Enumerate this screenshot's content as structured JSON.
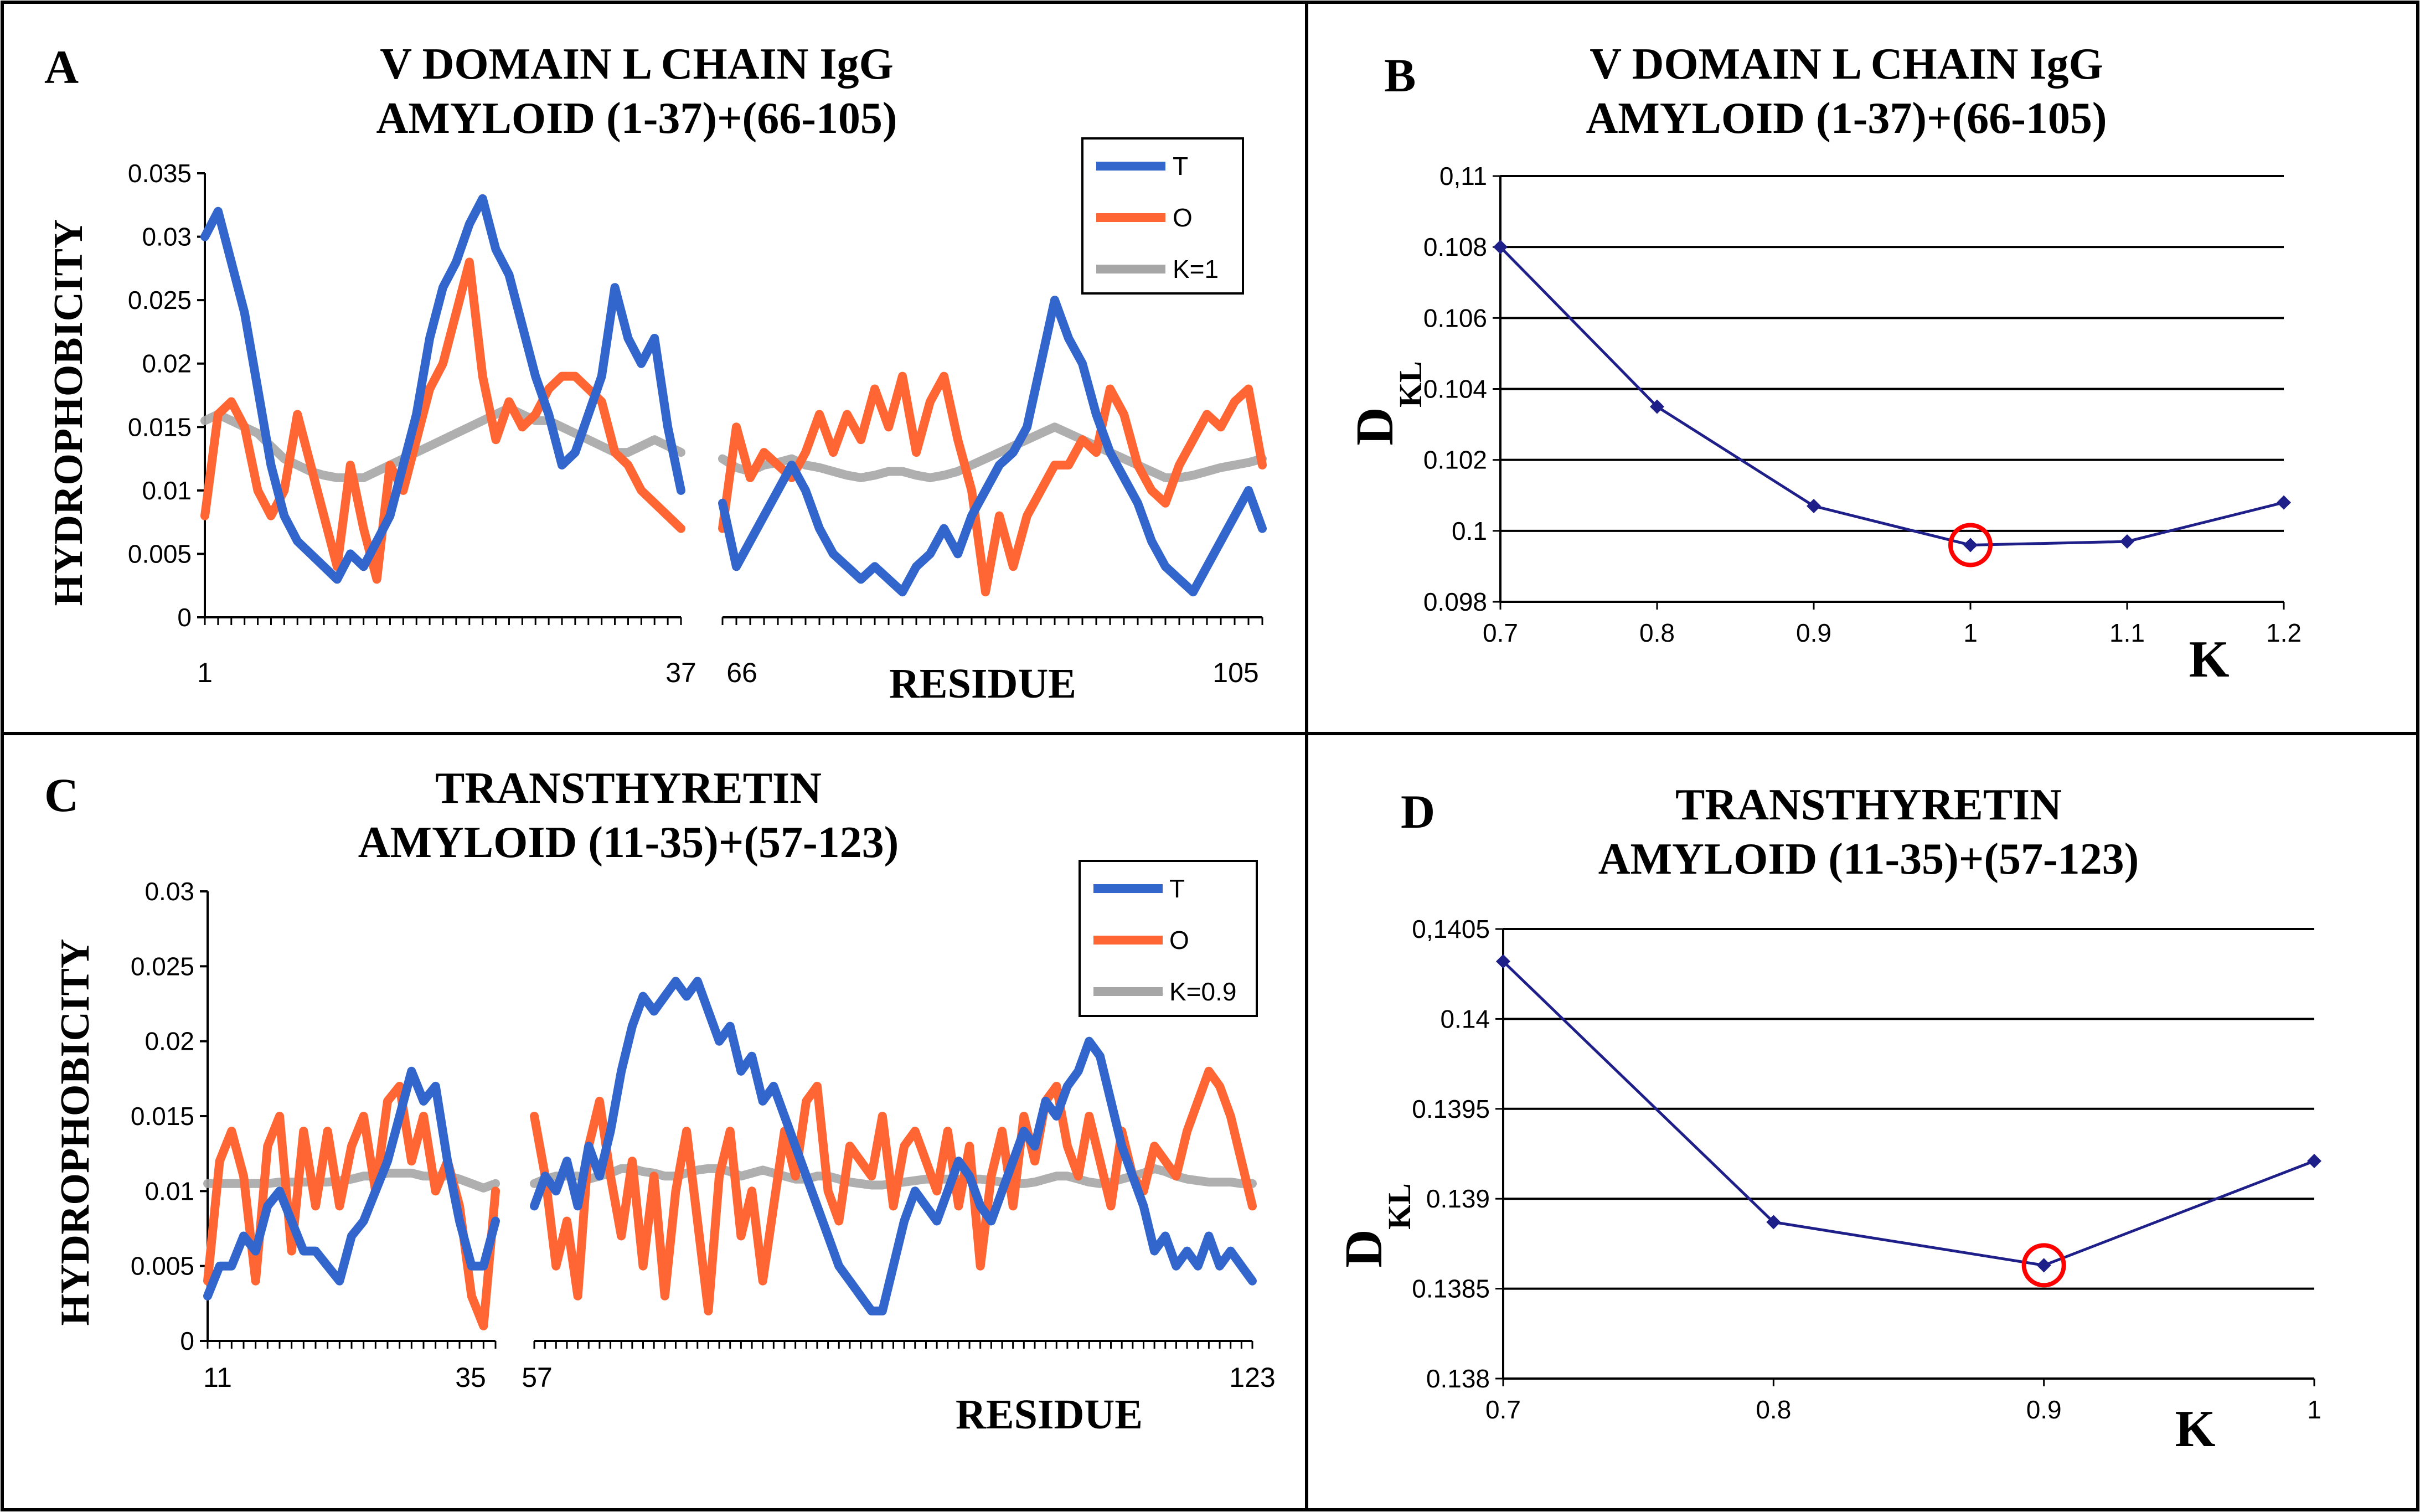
{
  "panels": {
    "A": {
      "letter": "A",
      "title_line1": "V DOMAIN L CHAIN IgG",
      "title_line2": "AMYLOID (1-37)+(66-105)",
      "ylabel": "HYDROPHOBICITY",
      "xlabel": "RESIDUE",
      "seg1_start": "1",
      "seg1_end": "37",
      "seg2_start": "66",
      "seg2_end": "105",
      "legend": [
        {
          "label": "T",
          "color": "#3366cc"
        },
        {
          "label": "O",
          "color": "#ff6633"
        },
        {
          "label": "K=1",
          "color": "#a6a6a6"
        }
      ]
    },
    "B": {
      "letter": "B",
      "title_line1": "V DOMAIN L CHAIN IgG",
      "title_line2": "AMYLOID (1-37)+(66-105)",
      "ylabel_main": "D",
      "ylabel_sub": "KL",
      "xlabel": "K"
    },
    "C": {
      "letter": "C",
      "title_line1": "TRANSTHYRETIN",
      "title_line2": "AMYLOID (11-35)+(57-123)",
      "ylabel": "HYDROPHOBICITY",
      "xlabel": "RESIDUE",
      "seg1_start": "11",
      "seg1_end": "35",
      "seg2_start": "57",
      "seg2_end": "123",
      "legend": [
        {
          "label": "T",
          "color": "#3366cc"
        },
        {
          "label": "O",
          "color": "#ff6633"
        },
        {
          "label": "K=0.9",
          "color": "#a6a6a6"
        }
      ]
    },
    "D": {
      "letter": "D",
      "title_line1": "TRANSTHYRETIN",
      "title_line2": "AMYLOID (11-35)+(57-123)",
      "ylabel_main": "D",
      "ylabel_sub": "KL",
      "xlabel": "K"
    }
  },
  "chart_data": [
    {
      "id": "A",
      "type": "line",
      "title": "V DOMAIN L CHAIN IgG AMYLOID (1-37)+(66-105)",
      "xlabel": "RESIDUE",
      "ylabel": "HYDROPHOBICITY",
      "ylim": [
        0,
        0.035
      ],
      "yticks": [
        "0",
        "0.005",
        "0.01",
        "0.015",
        "0.02",
        "0.025",
        "0.03",
        "0.035"
      ],
      "segments": [
        [
          1,
          37
        ],
        [
          66,
          105
        ]
      ],
      "series": [
        {
          "name": "T",
          "color": "#3366cc",
          "seg1": [
            0.03,
            0.032,
            0.028,
            0.024,
            0.018,
            0.012,
            0.008,
            0.006,
            0.005,
            0.004,
            0.003,
            0.005,
            0.004,
            0.006,
            0.008,
            0.012,
            0.016,
            0.022,
            0.026,
            0.028,
            0.031,
            0.033,
            0.029,
            0.027,
            0.023,
            0.019,
            0.016,
            0.012,
            0.013,
            0.016,
            0.019,
            0.026,
            0.022,
            0.02,
            0.022,
            0.015,
            0.01
          ],
          "seg2": [
            0.009,
            0.004,
            0.006,
            0.008,
            0.01,
            0.012,
            0.01,
            0.007,
            0.005,
            0.004,
            0.003,
            0.004,
            0.003,
            0.002,
            0.004,
            0.005,
            0.007,
            0.005,
            0.008,
            0.01,
            0.012,
            0.013,
            0.015,
            0.02,
            0.025,
            0.022,
            0.02,
            0.016,
            0.013,
            0.011,
            0.009,
            0.006,
            0.004,
            0.003,
            0.002,
            0.004,
            0.006,
            0.008,
            0.01,
            0.007
          ]
        },
        {
          "name": "O",
          "color": "#ff6633",
          "seg1": [
            0.008,
            0.016,
            0.017,
            0.015,
            0.01,
            0.008,
            0.01,
            0.016,
            0.012,
            0.008,
            0.004,
            0.012,
            0.007,
            0.003,
            0.012,
            0.01,
            0.014,
            0.018,
            0.02,
            0.024,
            0.028,
            0.019,
            0.014,
            0.017,
            0.015,
            0.016,
            0.018,
            0.019,
            0.019,
            0.018,
            0.017,
            0.013,
            0.012,
            0.01,
            0.009,
            0.008,
            0.007
          ],
          "seg2": [
            0.007,
            0.015,
            0.011,
            0.013,
            0.012,
            0.011,
            0.013,
            0.016,
            0.013,
            0.016,
            0.014,
            0.018,
            0.015,
            0.019,
            0.013,
            0.017,
            0.019,
            0.014,
            0.01,
            0.002,
            0.008,
            0.004,
            0.008,
            0.01,
            0.012,
            0.012,
            0.014,
            0.013,
            0.018,
            0.016,
            0.012,
            0.01,
            0.009,
            0.012,
            0.014,
            0.016,
            0.015,
            0.017,
            0.018,
            0.012
          ]
        },
        {
          "name": "K=1",
          "color": "#a6a6a6",
          "seg1": [
            0.0155,
            0.016,
            0.0155,
            0.015,
            0.0145,
            0.0135,
            0.0125,
            0.012,
            0.0115,
            0.0112,
            0.011,
            0.011,
            0.011,
            0.0115,
            0.012,
            0.0125,
            0.013,
            0.0135,
            0.014,
            0.0145,
            0.015,
            0.0155,
            0.016,
            0.0165,
            0.016,
            0.0155,
            0.0155,
            0.015,
            0.0145,
            0.014,
            0.0135,
            0.013,
            0.013,
            0.0135,
            0.014,
            0.0135,
            0.013
          ],
          "seg2": [
            0.0125,
            0.0118,
            0.0115,
            0.012,
            0.0122,
            0.0125,
            0.012,
            0.0118,
            0.0115,
            0.0112,
            0.011,
            0.0112,
            0.0115,
            0.0115,
            0.0112,
            0.011,
            0.0112,
            0.0115,
            0.012,
            0.0125,
            0.013,
            0.0135,
            0.014,
            0.0145,
            0.015,
            0.0145,
            0.014,
            0.0135,
            0.013,
            0.0125,
            0.012,
            0.0115,
            0.011,
            0.011,
            0.0112,
            0.0115,
            0.0118,
            0.012,
            0.0122,
            0.0125
          ]
        }
      ]
    },
    {
      "id": "B",
      "type": "line",
      "title": "V DOMAIN L CHAIN IgG AMYLOID (1-37)+(66-105)",
      "xlabel": "K",
      "ylabel": "DKL",
      "x": [
        0.7,
        0.8,
        0.9,
        1.0,
        1.1,
        1.2
      ],
      "xticks": [
        "0.7",
        "0.8",
        "0.9",
        "1",
        "1.1",
        "1.2"
      ],
      "values": [
        0.108,
        0.1035,
        0.1007,
        0.0996,
        0.0997,
        0.1008
      ],
      "ylim": [
        0.098,
        0.11
      ],
      "yticks": [
        "0.098",
        "0.1",
        "0.102",
        "0.104",
        "0.106",
        "0.108",
        "0,11"
      ],
      "highlight_x": 1.0,
      "line_color": "#1f1f8a",
      "highlight_color": "#ff0000"
    },
    {
      "id": "C",
      "type": "line",
      "title": "TRANSTHYRETIN AMYLOID (11-35)+(57-123)",
      "xlabel": "RESIDUE",
      "ylabel": "HYDROPHOBICITY",
      "ylim": [
        0,
        0.03
      ],
      "yticks": [
        "0",
        "0.005",
        "0.01",
        "0.015",
        "0.02",
        "0.025",
        "0.03"
      ],
      "segments": [
        [
          11,
          35
        ],
        [
          57,
          123
        ]
      ],
      "series": [
        {
          "name": "T",
          "color": "#3366cc",
          "seg1": [
            0.003,
            0.005,
            0.005,
            0.007,
            0.006,
            0.009,
            0.01,
            0.008,
            0.006,
            0.006,
            0.005,
            0.004,
            0.007,
            0.008,
            0.01,
            0.012,
            0.015,
            0.018,
            0.016,
            0.017,
            0.012,
            0.008,
            0.005,
            0.005,
            0.008
          ],
          "seg2": [
            0.009,
            0.011,
            0.01,
            0.012,
            0.009,
            0.013,
            0.011,
            0.014,
            0.018,
            0.021,
            0.023,
            0.022,
            0.023,
            0.024,
            0.023,
            0.024,
            0.022,
            0.02,
            0.021,
            0.018,
            0.019,
            0.016,
            0.017,
            0.015,
            0.013,
            0.011,
            0.009,
            0.007,
            0.005,
            0.004,
            0.003,
            0.002,
            0.002,
            0.005,
            0.008,
            0.01,
            0.009,
            0.008,
            0.01,
            0.012,
            0.011,
            0.009,
            0.008,
            0.01,
            0.012,
            0.014,
            0.013,
            0.016,
            0.015,
            0.017,
            0.018,
            0.02,
            0.019,
            0.016,
            0.013,
            0.011,
            0.009,
            0.006,
            0.007,
            0.005,
            0.006,
            0.005,
            0.007,
            0.005,
            0.006,
            0.005,
            0.004
          ]
        },
        {
          "name": "O",
          "color": "#ff6633",
          "seg1": [
            0.004,
            0.012,
            0.014,
            0.011,
            0.004,
            0.013,
            0.015,
            0.006,
            0.014,
            0.009,
            0.014,
            0.009,
            0.013,
            0.015,
            0.01,
            0.016,
            0.017,
            0.012,
            0.015,
            0.01,
            0.012,
            0.009,
            0.003,
            0.001,
            0.01
          ],
          "seg2": [
            0.015,
            0.011,
            0.005,
            0.008,
            0.003,
            0.013,
            0.016,
            0.011,
            0.007,
            0.012,
            0.005,
            0.011,
            0.003,
            0.01,
            0.014,
            0.008,
            0.002,
            0.011,
            0.014,
            0.007,
            0.01,
            0.004,
            0.009,
            0.014,
            0.011,
            0.016,
            0.017,
            0.01,
            0.008,
            0.013,
            0.012,
            0.011,
            0.015,
            0.009,
            0.013,
            0.014,
            0.012,
            0.01,
            0.014,
            0.009,
            0.013,
            0.005,
            0.011,
            0.014,
            0.009,
            0.015,
            0.012,
            0.016,
            0.017,
            0.013,
            0.011,
            0.015,
            0.012,
            0.009,
            0.014,
            0.011,
            0.01,
            0.013,
            0.012,
            0.011,
            0.014,
            0.016,
            0.018,
            0.017,
            0.015,
            0.012,
            0.009
          ]
        },
        {
          "name": "K=0.9",
          "color": "#a6a6a6",
          "seg1": [
            0.0105,
            0.0105,
            0.0105,
            0.0105,
            0.0105,
            0.0105,
            0.0106,
            0.0106,
            0.0106,
            0.0106,
            0.0106,
            0.0107,
            0.0108,
            0.011,
            0.011,
            0.0112,
            0.0112,
            0.0112,
            0.011,
            0.011,
            0.011,
            0.0108,
            0.0105,
            0.0102,
            0.0105
          ],
          "seg2": [
            0.0105,
            0.0108,
            0.011,
            0.011,
            0.011,
            0.0108,
            0.011,
            0.0112,
            0.0115,
            0.0115,
            0.0113,
            0.0112,
            0.011,
            0.011,
            0.0112,
            0.0114,
            0.0115,
            0.0115,
            0.0113,
            0.011,
            0.0112,
            0.0114,
            0.0112,
            0.011,
            0.0108,
            0.0108,
            0.011,
            0.011,
            0.0108,
            0.0106,
            0.0105,
            0.0104,
            0.0104,
            0.0105,
            0.0106,
            0.0107,
            0.0108,
            0.0108,
            0.0108,
            0.0108,
            0.0108,
            0.0108,
            0.0107,
            0.0106,
            0.0105,
            0.0105,
            0.0106,
            0.0108,
            0.011,
            0.011,
            0.0108,
            0.0106,
            0.0105,
            0.0106,
            0.0108,
            0.011,
            0.0112,
            0.0115,
            0.0113,
            0.011,
            0.0108,
            0.0107,
            0.0106,
            0.0106,
            0.0106,
            0.0105,
            0.0105
          ]
        }
      ]
    },
    {
      "id": "D",
      "type": "line",
      "title": "TRANSTHYRETIN AMYLOID (11-35)+(57-123)",
      "xlabel": "K",
      "ylabel": "DKL",
      "x": [
        0.7,
        0.8,
        0.9,
        1.0
      ],
      "xticks": [
        "0.7",
        "0.8",
        "0.9",
        "1"
      ],
      "values": [
        0.14032,
        0.13887,
        0.13863,
        0.13921
      ],
      "ylim": [
        0.138,
        0.1405
      ],
      "yticks": [
        "0.138",
        "0.1385",
        "0.139",
        "0.1395",
        "0.14",
        "0,1405"
      ],
      "highlight_x": 0.9,
      "line_color": "#1f1f8a",
      "highlight_color": "#ff0000"
    }
  ]
}
